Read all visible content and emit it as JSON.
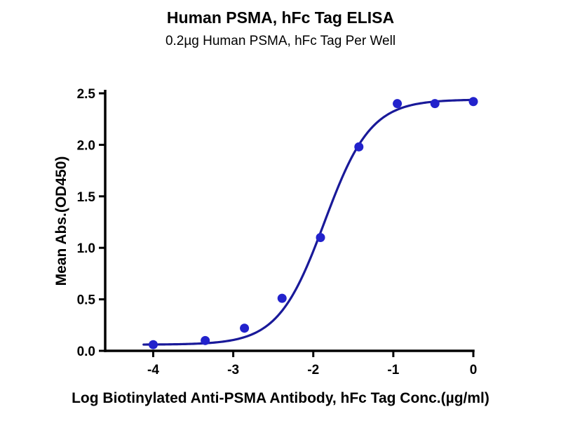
{
  "title": "Human PSMA, hFc Tag ELISA",
  "subtitle": "0.2µg Human PSMA, hFc Tag Per Well",
  "chart_data": {
    "type": "scatter",
    "title": "Human PSMA, hFc Tag ELISA",
    "subtitle": "0.2µg Human PSMA, hFc Tag Per Well",
    "xlabel": "Log Biotinylated Anti-PSMA Antibody, hFc Tag Conc.(µg/ml)",
    "ylabel": "Mean Abs.(OD450)",
    "x": [
      -4.0,
      -3.35,
      -2.86,
      -2.39,
      -1.91,
      -1.43,
      -0.95,
      -0.48,
      0
    ],
    "y": [
      0.06,
      0.1,
      0.22,
      0.51,
      1.1,
      1.98,
      2.4,
      2.4,
      2.42
    ],
    "xticks": [
      -4,
      -3,
      -2,
      -1,
      0
    ],
    "yticks": [
      0.0,
      0.5,
      1.0,
      1.5,
      2.0,
      2.5
    ],
    "xlim": [
      -4.6,
      0
    ],
    "ylim": [
      0,
      2.5
    ],
    "legend": "none",
    "grid": false,
    "curve_fit": {
      "model": "4PL",
      "bottom": 0.06,
      "top": 2.44,
      "logEC50": -1.86,
      "hill": 1.5
    },
    "point_color": "#2222cc",
    "curve_color": "#191999",
    "axis_color": "#000000"
  }
}
